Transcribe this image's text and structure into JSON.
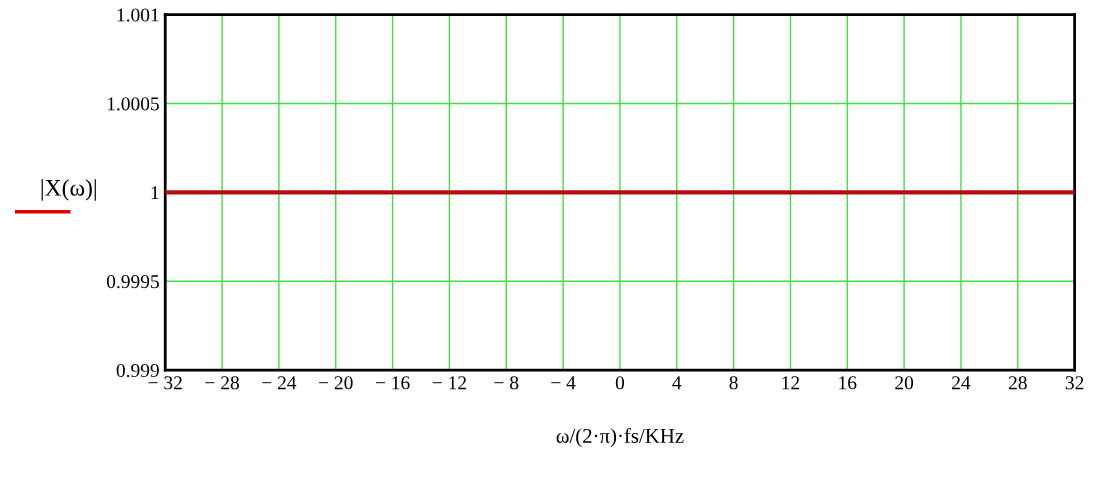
{
  "chart_data": {
    "type": "line",
    "xlabel": "ω/(2·π)·fs/KHz",
    "ylabel": "|X(ω)|",
    "x": [
      -32,
      32
    ],
    "series": [
      {
        "color": "#b01010",
        "values": [
          1,
          1
        ]
      }
    ],
    "xlim": [
      -32,
      32
    ],
    "xticks": [
      {
        "value": -32,
        "label": "− 32"
      },
      {
        "value": -28,
        "label": "− 28"
      },
      {
        "value": -24,
        "label": "− 24"
      },
      {
        "value": -20,
        "label": "− 20"
      },
      {
        "value": -16,
        "label": "− 16"
      },
      {
        "value": -12,
        "label": "− 12"
      },
      {
        "value": -8,
        "label": "− 8"
      },
      {
        "value": -4,
        "label": "− 4"
      },
      0,
      4,
      8,
      12,
      16,
      20,
      24,
      28,
      32
    ],
    "ylim": [
      0.999,
      1.001
    ],
    "yticks": [
      0.999,
      0.9995,
      1,
      1.0005,
      1.001
    ],
    "grid": true,
    "line_style": "solid",
    "marker": "none"
  }
}
